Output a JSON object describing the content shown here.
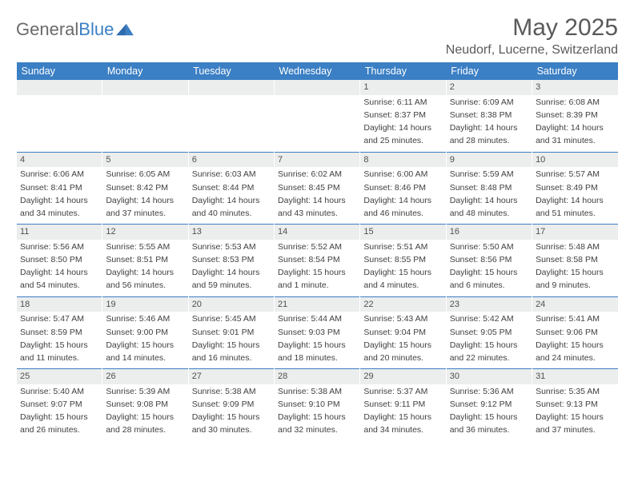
{
  "logo": {
    "word1": "General",
    "word2": "Blue"
  },
  "title": "May 2025",
  "location": "Neudorf, Lucerne, Switzerland",
  "colors": {
    "header_bg": "#3b7fc4",
    "header_text": "#ffffff",
    "daynum_bg": "#eceded",
    "body_text": "#404040",
    "title_text": "#5a5a5a",
    "logo_gray": "#6a6a6a",
    "logo_blue": "#3b7fc4"
  },
  "weekdays": [
    "Sunday",
    "Monday",
    "Tuesday",
    "Wednesday",
    "Thursday",
    "Friday",
    "Saturday"
  ],
  "weeks": [
    [
      null,
      null,
      null,
      null,
      {
        "n": "1",
        "sr": "Sunrise: 6:11 AM",
        "ss": "Sunset: 8:37 PM",
        "d1": "Daylight: 14 hours",
        "d2": "and 25 minutes."
      },
      {
        "n": "2",
        "sr": "Sunrise: 6:09 AM",
        "ss": "Sunset: 8:38 PM",
        "d1": "Daylight: 14 hours",
        "d2": "and 28 minutes."
      },
      {
        "n": "3",
        "sr": "Sunrise: 6:08 AM",
        "ss": "Sunset: 8:39 PM",
        "d1": "Daylight: 14 hours",
        "d2": "and 31 minutes."
      }
    ],
    [
      {
        "n": "4",
        "sr": "Sunrise: 6:06 AM",
        "ss": "Sunset: 8:41 PM",
        "d1": "Daylight: 14 hours",
        "d2": "and 34 minutes."
      },
      {
        "n": "5",
        "sr": "Sunrise: 6:05 AM",
        "ss": "Sunset: 8:42 PM",
        "d1": "Daylight: 14 hours",
        "d2": "and 37 minutes."
      },
      {
        "n": "6",
        "sr": "Sunrise: 6:03 AM",
        "ss": "Sunset: 8:44 PM",
        "d1": "Daylight: 14 hours",
        "d2": "and 40 minutes."
      },
      {
        "n": "7",
        "sr": "Sunrise: 6:02 AM",
        "ss": "Sunset: 8:45 PM",
        "d1": "Daylight: 14 hours",
        "d2": "and 43 minutes."
      },
      {
        "n": "8",
        "sr": "Sunrise: 6:00 AM",
        "ss": "Sunset: 8:46 PM",
        "d1": "Daylight: 14 hours",
        "d2": "and 46 minutes."
      },
      {
        "n": "9",
        "sr": "Sunrise: 5:59 AM",
        "ss": "Sunset: 8:48 PM",
        "d1": "Daylight: 14 hours",
        "d2": "and 48 minutes."
      },
      {
        "n": "10",
        "sr": "Sunrise: 5:57 AM",
        "ss": "Sunset: 8:49 PM",
        "d1": "Daylight: 14 hours",
        "d2": "and 51 minutes."
      }
    ],
    [
      {
        "n": "11",
        "sr": "Sunrise: 5:56 AM",
        "ss": "Sunset: 8:50 PM",
        "d1": "Daylight: 14 hours",
        "d2": "and 54 minutes."
      },
      {
        "n": "12",
        "sr": "Sunrise: 5:55 AM",
        "ss": "Sunset: 8:51 PM",
        "d1": "Daylight: 14 hours",
        "d2": "and 56 minutes."
      },
      {
        "n": "13",
        "sr": "Sunrise: 5:53 AM",
        "ss": "Sunset: 8:53 PM",
        "d1": "Daylight: 14 hours",
        "d2": "and 59 minutes."
      },
      {
        "n": "14",
        "sr": "Sunrise: 5:52 AM",
        "ss": "Sunset: 8:54 PM",
        "d1": "Daylight: 15 hours",
        "d2": "and 1 minute."
      },
      {
        "n": "15",
        "sr": "Sunrise: 5:51 AM",
        "ss": "Sunset: 8:55 PM",
        "d1": "Daylight: 15 hours",
        "d2": "and 4 minutes."
      },
      {
        "n": "16",
        "sr": "Sunrise: 5:50 AM",
        "ss": "Sunset: 8:56 PM",
        "d1": "Daylight: 15 hours",
        "d2": "and 6 minutes."
      },
      {
        "n": "17",
        "sr": "Sunrise: 5:48 AM",
        "ss": "Sunset: 8:58 PM",
        "d1": "Daylight: 15 hours",
        "d2": "and 9 minutes."
      }
    ],
    [
      {
        "n": "18",
        "sr": "Sunrise: 5:47 AM",
        "ss": "Sunset: 8:59 PM",
        "d1": "Daylight: 15 hours",
        "d2": "and 11 minutes."
      },
      {
        "n": "19",
        "sr": "Sunrise: 5:46 AM",
        "ss": "Sunset: 9:00 PM",
        "d1": "Daylight: 15 hours",
        "d2": "and 14 minutes."
      },
      {
        "n": "20",
        "sr": "Sunrise: 5:45 AM",
        "ss": "Sunset: 9:01 PM",
        "d1": "Daylight: 15 hours",
        "d2": "and 16 minutes."
      },
      {
        "n": "21",
        "sr": "Sunrise: 5:44 AM",
        "ss": "Sunset: 9:03 PM",
        "d1": "Daylight: 15 hours",
        "d2": "and 18 minutes."
      },
      {
        "n": "22",
        "sr": "Sunrise: 5:43 AM",
        "ss": "Sunset: 9:04 PM",
        "d1": "Daylight: 15 hours",
        "d2": "and 20 minutes."
      },
      {
        "n": "23",
        "sr": "Sunrise: 5:42 AM",
        "ss": "Sunset: 9:05 PM",
        "d1": "Daylight: 15 hours",
        "d2": "and 22 minutes."
      },
      {
        "n": "24",
        "sr": "Sunrise: 5:41 AM",
        "ss": "Sunset: 9:06 PM",
        "d1": "Daylight: 15 hours",
        "d2": "and 24 minutes."
      }
    ],
    [
      {
        "n": "25",
        "sr": "Sunrise: 5:40 AM",
        "ss": "Sunset: 9:07 PM",
        "d1": "Daylight: 15 hours",
        "d2": "and 26 minutes."
      },
      {
        "n": "26",
        "sr": "Sunrise: 5:39 AM",
        "ss": "Sunset: 9:08 PM",
        "d1": "Daylight: 15 hours",
        "d2": "and 28 minutes."
      },
      {
        "n": "27",
        "sr": "Sunrise: 5:38 AM",
        "ss": "Sunset: 9:09 PM",
        "d1": "Daylight: 15 hours",
        "d2": "and 30 minutes."
      },
      {
        "n": "28",
        "sr": "Sunrise: 5:38 AM",
        "ss": "Sunset: 9:10 PM",
        "d1": "Daylight: 15 hours",
        "d2": "and 32 minutes."
      },
      {
        "n": "29",
        "sr": "Sunrise: 5:37 AM",
        "ss": "Sunset: 9:11 PM",
        "d1": "Daylight: 15 hours",
        "d2": "and 34 minutes."
      },
      {
        "n": "30",
        "sr": "Sunrise: 5:36 AM",
        "ss": "Sunset: 9:12 PM",
        "d1": "Daylight: 15 hours",
        "d2": "and 36 minutes."
      },
      {
        "n": "31",
        "sr": "Sunrise: 5:35 AM",
        "ss": "Sunset: 9:13 PM",
        "d1": "Daylight: 15 hours",
        "d2": "and 37 minutes."
      }
    ]
  ]
}
